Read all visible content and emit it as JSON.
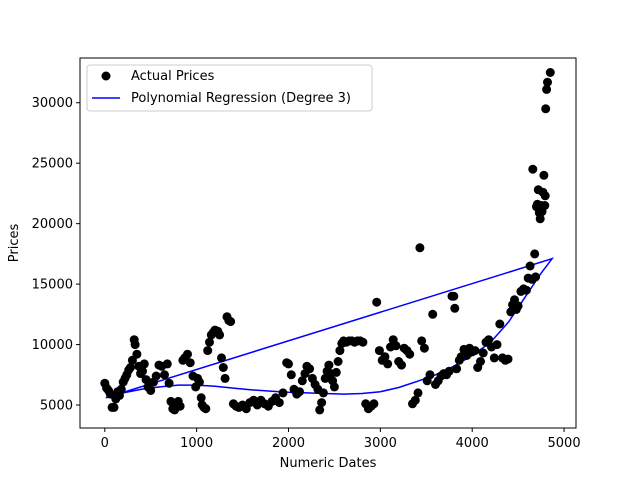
{
  "chart_data": {
    "type": "scatter",
    "title": "",
    "xlabel": "Numeric Dates",
    "ylabel": "Prices",
    "xlim": [
      -270,
      5130
    ],
    "ylim": [
      3100,
      33700
    ],
    "xticks": [
      0,
      1000,
      2000,
      3000,
      4000,
      5000
    ],
    "yticks": [
      5000,
      10000,
      15000,
      20000,
      25000,
      30000
    ],
    "grid": false,
    "legend_position": "top-left",
    "series": [
      {
        "name": "Actual Prices",
        "kind": "scatter",
        "color": "#000000",
        "points": [
          [
            0,
            6800
          ],
          [
            20,
            6400
          ],
          [
            40,
            6200
          ],
          [
            60,
            5900
          ],
          [
            80,
            4800
          ],
          [
            100,
            4800
          ],
          [
            120,
            5500
          ],
          [
            140,
            6100
          ],
          [
            160,
            5800
          ],
          [
            180,
            6300
          ],
          [
            200,
            6900
          ],
          [
            220,
            7200
          ],
          [
            240,
            7500
          ],
          [
            260,
            7900
          ],
          [
            280,
            8100
          ],
          [
            300,
            8700
          ],
          [
            320,
            10400
          ],
          [
            330,
            10000
          ],
          [
            350,
            9200
          ],
          [
            370,
            8200
          ],
          [
            390,
            7600
          ],
          [
            410,
            7800
          ],
          [
            430,
            8400
          ],
          [
            450,
            7100
          ],
          [
            470,
            6500
          ],
          [
            500,
            6200
          ],
          [
            530,
            6900
          ],
          [
            560,
            7400
          ],
          [
            590,
            8300
          ],
          [
            620,
            8200
          ],
          [
            650,
            7500
          ],
          [
            680,
            8400
          ],
          [
            700,
            6800
          ],
          [
            720,
            5300
          ],
          [
            740,
            4700
          ],
          [
            760,
            4600
          ],
          [
            780,
            5000
          ],
          [
            800,
            5300
          ],
          [
            820,
            4900
          ],
          [
            850,
            8700
          ],
          [
            870,
            8900
          ],
          [
            900,
            9200
          ],
          [
            930,
            8500
          ],
          [
            960,
            7400
          ],
          [
            990,
            6500
          ],
          [
            1010,
            7200
          ],
          [
            1030,
            6900
          ],
          [
            1050,
            5600
          ],
          [
            1060,
            5000
          ],
          [
            1080,
            4800
          ],
          [
            1100,
            4700
          ],
          [
            1120,
            9500
          ],
          [
            1140,
            10200
          ],
          [
            1160,
            10800
          ],
          [
            1180,
            11000
          ],
          [
            1200,
            11200
          ],
          [
            1230,
            11100
          ],
          [
            1250,
            10800
          ],
          [
            1270,
            8900
          ],
          [
            1290,
            8100
          ],
          [
            1310,
            7200
          ],
          [
            1330,
            12300
          ],
          [
            1350,
            12000
          ],
          [
            1370,
            11900
          ],
          [
            1400,
            5100
          ],
          [
            1430,
            4900
          ],
          [
            1460,
            4800
          ],
          [
            1500,
            5000
          ],
          [
            1540,
            4700
          ],
          [
            1580,
            5200
          ],
          [
            1620,
            5400
          ],
          [
            1660,
            5000
          ],
          [
            1700,
            5400
          ],
          [
            1740,
            5100
          ],
          [
            1780,
            4900
          ],
          [
            1820,
            5300
          ],
          [
            1860,
            5600
          ],
          [
            1900,
            5200
          ],
          [
            1940,
            6000
          ],
          [
            1980,
            8500
          ],
          [
            2000,
            8400
          ],
          [
            2030,
            7500
          ],
          [
            2060,
            6300
          ],
          [
            2090,
            5900
          ],
          [
            2120,
            6100
          ],
          [
            2150,
            7000
          ],
          [
            2180,
            7600
          ],
          [
            2200,
            8200
          ],
          [
            2230,
            8000
          ],
          [
            2260,
            7200
          ],
          [
            2290,
            6700
          ],
          [
            2320,
            6300
          ],
          [
            2340,
            4600
          ],
          [
            2360,
            5200
          ],
          [
            2380,
            6000
          ],
          [
            2400,
            7200
          ],
          [
            2420,
            7800
          ],
          [
            2440,
            8300
          ],
          [
            2460,
            7600
          ],
          [
            2480,
            7000
          ],
          [
            2500,
            6500
          ],
          [
            2520,
            7700
          ],
          [
            2540,
            8600
          ],
          [
            2560,
            9500
          ],
          [
            2580,
            10100
          ],
          [
            2600,
            10300
          ],
          [
            2630,
            10200
          ],
          [
            2660,
            10300
          ],
          [
            2690,
            10300
          ],
          [
            2720,
            10200
          ],
          [
            2750,
            10300
          ],
          [
            2780,
            10300
          ],
          [
            2810,
            10200
          ],
          [
            2840,
            5100
          ],
          [
            2870,
            4700
          ],
          [
            2900,
            4900
          ],
          [
            2930,
            5100
          ],
          [
            2960,
            13500
          ],
          [
            2990,
            9500
          ],
          [
            3020,
            8700
          ],
          [
            3050,
            9000
          ],
          [
            3080,
            8400
          ],
          [
            3110,
            9800
          ],
          [
            3140,
            10400
          ],
          [
            3170,
            9900
          ],
          [
            3200,
            8600
          ],
          [
            3230,
            8300
          ],
          [
            3260,
            9700
          ],
          [
            3290,
            9500
          ],
          [
            3320,
            9200
          ],
          [
            3350,
            5100
          ],
          [
            3380,
            5400
          ],
          [
            3410,
            6000
          ],
          [
            3430,
            18000
          ],
          [
            3450,
            10300
          ],
          [
            3480,
            9700
          ],
          [
            3510,
            7000
          ],
          [
            3540,
            7500
          ],
          [
            3570,
            12500
          ],
          [
            3600,
            6700
          ],
          [
            3630,
            7000
          ],
          [
            3660,
            7400
          ],
          [
            3690,
            7600
          ],
          [
            3720,
            7500
          ],
          [
            3750,
            7800
          ],
          [
            3780,
            14000
          ],
          [
            3800,
            14000
          ],
          [
            3810,
            13000
          ],
          [
            3830,
            8000
          ],
          [
            3860,
            8700
          ],
          [
            3880,
            9000
          ],
          [
            3910,
            9600
          ],
          [
            3940,
            9100
          ],
          [
            3970,
            9700
          ],
          [
            4000,
            9400
          ],
          [
            4030,
            9500
          ],
          [
            4060,
            8100
          ],
          [
            4090,
            8600
          ],
          [
            4120,
            9300
          ],
          [
            4150,
            10200
          ],
          [
            4180,
            10400
          ],
          [
            4210,
            9800
          ],
          [
            4240,
            8900
          ],
          [
            4270,
            10000
          ],
          [
            4300,
            11700
          ],
          [
            4330,
            8900
          ],
          [
            4360,
            8700
          ],
          [
            4390,
            8800
          ],
          [
            4420,
            12700
          ],
          [
            4440,
            13300
          ],
          [
            4460,
            13700
          ],
          [
            4480,
            12900
          ],
          [
            4500,
            13200
          ],
          [
            4530,
            14400
          ],
          [
            4560,
            14600
          ],
          [
            4590,
            14500
          ],
          [
            4610,
            15500
          ],
          [
            4630,
            16500
          ],
          [
            4650,
            15400
          ],
          [
            4660,
            24500
          ],
          [
            4680,
            17500
          ],
          [
            4690,
            15600
          ],
          [
            4700,
            21400
          ],
          [
            4710,
            21600
          ],
          [
            4720,
            22800
          ],
          [
            4730,
            20900
          ],
          [
            4740,
            20400
          ],
          [
            4750,
            21500
          ],
          [
            4760,
            21000
          ],
          [
            4770,
            22600
          ],
          [
            4780,
            24000
          ],
          [
            4790,
            21500
          ],
          [
            4795,
            22300
          ],
          [
            4800,
            29500
          ],
          [
            4810,
            31100
          ],
          [
            4820,
            31700
          ],
          [
            4850,
            32500
          ]
        ]
      },
      {
        "name": "Polynomial Regression (Degree 3)",
        "kind": "line",
        "color": "#0000ff",
        "points": [
          [
            10,
            5600
          ],
          [
            200,
            6000
          ],
          [
            400,
            6300
          ],
          [
            600,
            6500
          ],
          [
            800,
            6650
          ],
          [
            1000,
            6650
          ],
          [
            1200,
            6550
          ],
          [
            1400,
            6400
          ],
          [
            1600,
            6250
          ],
          [
            1800,
            6150
          ],
          [
            2000,
            6050
          ],
          [
            2200,
            6000
          ],
          [
            2400,
            5950
          ],
          [
            2600,
            5900
          ],
          [
            2800,
            5950
          ],
          [
            3000,
            6100
          ],
          [
            3200,
            6450
          ],
          [
            3400,
            6950
          ],
          [
            3600,
            7500
          ],
          [
            3800,
            8200
          ],
          [
            4000,
            9100
          ],
          [
            4200,
            10200
          ],
          [
            4400,
            11900
          ],
          [
            4600,
            14200
          ],
          [
            4750,
            15900
          ],
          [
            4870,
            17100
          ],
          [
            10,
            5600
          ]
        ]
      }
    ]
  }
}
